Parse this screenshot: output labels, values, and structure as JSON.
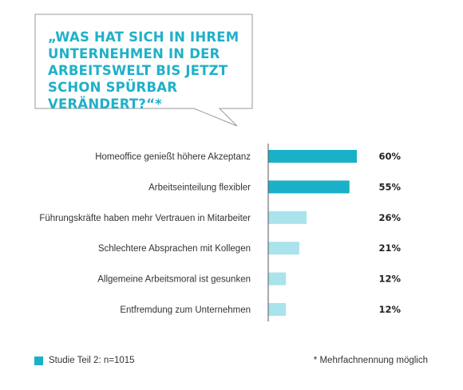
{
  "question": "„Was hat sich in Ihrem Unternehmen in der Arbeitswelt bis jetzt schon spürbar verändert?“*",
  "legend_label": "Studie Teil 2: n=1015",
  "footnote": "* Mehrfachnennung möglich",
  "colors": {
    "accent": "#1fb0c9",
    "strong_bar": "#1ab0c8",
    "light_bar": "#a9e3ec"
  },
  "chart_data": {
    "type": "bar",
    "orientation": "horizontal",
    "categories": [
      "Homeoffice genießt höhere Akzeptanz",
      "Arbeitseinteilung flexibler",
      "Führungskräfte haben mehr Vertrauen in Mitarbeiter",
      "Schlechtere Absprachen mit Kollegen",
      "Allgemeine Arbeitsmoral ist gesunken",
      "Entfremdung zum Unternehmen"
    ],
    "values": [
      60,
      55,
      26,
      21,
      12,
      12
    ],
    "value_labels": [
      "60%",
      "55%",
      "26%",
      "21%",
      "12%",
      "12%"
    ],
    "bar_colors": [
      "#1ab0c8",
      "#1ab0c8",
      "#a9e3ec",
      "#a9e3ec",
      "#a9e3ec",
      "#a9e3ec"
    ],
    "xlim": [
      0,
      100
    ],
    "legend": [
      "Studie Teil 2: n=1015"
    ],
    "grid": false
  }
}
